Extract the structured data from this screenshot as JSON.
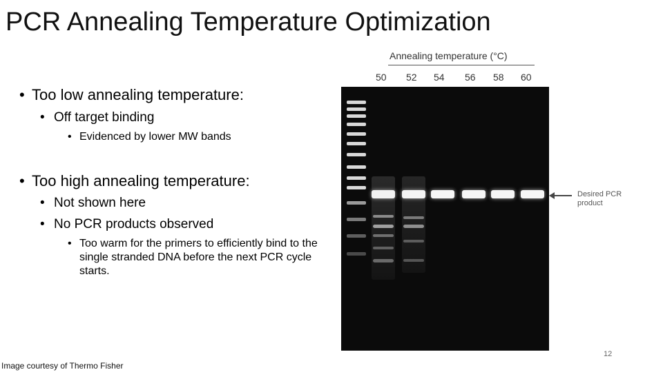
{
  "slide": {
    "title": "PCR Annealing Temperature Optimization",
    "bullet_symbol": "•",
    "bullets": [
      {
        "text": "Too low annealing temperature:",
        "level": 1
      },
      {
        "text": "Off target binding",
        "level": 2
      },
      {
        "text": "Evidenced by lower MW bands",
        "level": 3
      },
      {
        "text": "Too high annealing temperature:",
        "level": 1
      },
      {
        "text": "Not shown here",
        "level": 2
      },
      {
        "text": "No PCR products observed",
        "level": 2
      },
      {
        "text": "Too warm for the primers to efficiently bind to the single stranded DNA before the next PCR cycle starts.",
        "level": 3
      }
    ],
    "credit": "Image courtesy of Thermo Fisher",
    "page_number": "12"
  },
  "gel_figure": {
    "title": "Annealing temperature (°C)",
    "lanes": [
      "50",
      "52",
      "54",
      "56",
      "58",
      "60"
    ],
    "arrow_label": "Desired PCR product"
  }
}
